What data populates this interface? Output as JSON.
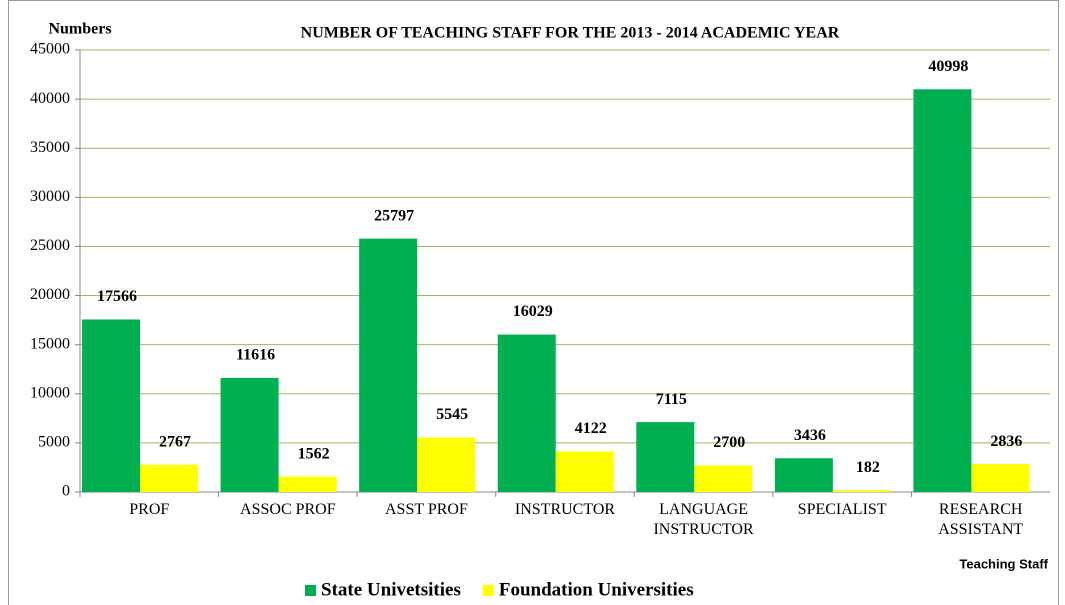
{
  "chart_data": {
    "type": "bar",
    "title": "NUMBER OF TEACHING STAFF  FOR THE 2013 - 2014 ACADEMIC YEAR",
    "y_axis_label": "Numbers",
    "x_axis_label": "Teaching Staff",
    "categories": [
      "PROF",
      "ASSOC PROF",
      "ASST PROF",
      "INSTRUCTOR",
      "LANGUAGE INSTRUCTOR",
      "SPECIALIST",
      "RESEARCH ASSISTANT"
    ],
    "series": [
      {
        "name": "State Univetsities",
        "color": "#00b050",
        "values": [
          17566,
          11616,
          25797,
          16029,
          7115,
          3436,
          40998
        ]
      },
      {
        "name": "Foundation Universities",
        "color": "#ffff00",
        "values": [
          2767,
          1562,
          5545,
          4122,
          2700,
          182,
          2836
        ]
      }
    ],
    "ylim": [
      0,
      45000
    ],
    "yticks": [
      0,
      5000,
      10000,
      15000,
      20000,
      25000,
      30000,
      35000,
      40000,
      45000
    ],
    "grid": true,
    "legend": "bottom"
  }
}
